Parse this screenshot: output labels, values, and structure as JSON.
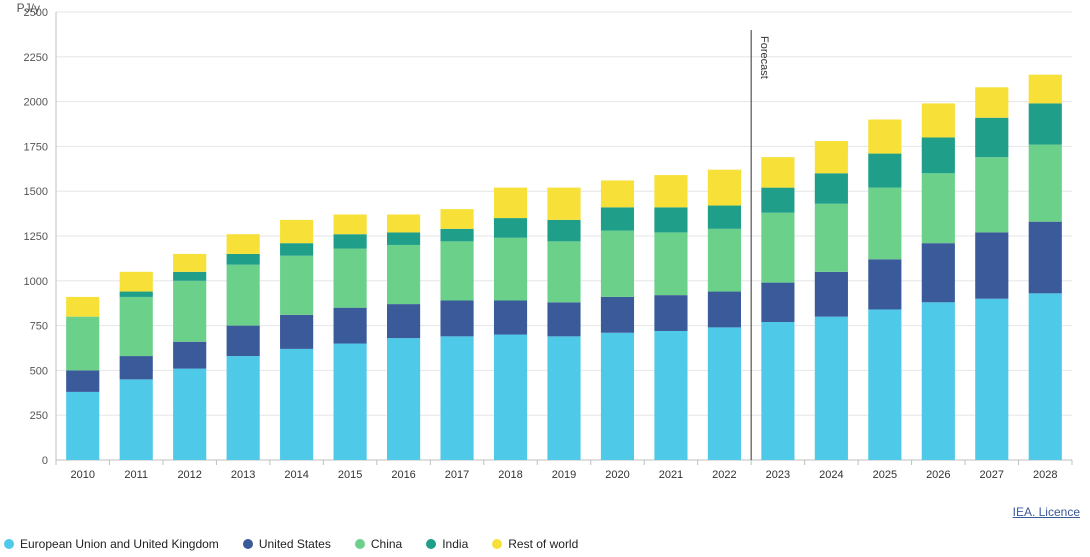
{
  "chart": {
    "type": "stacked-bar",
    "y_axis_title": "PJ/y",
    "y_axis_title_fontsize": 12,
    "ylim": [
      0,
      2500
    ],
    "ytick_step": 250,
    "label_fontsize": 11,
    "background_color": "#ffffff",
    "grid_color": "#e6e6e6",
    "axis_color": "#bfbfbf",
    "bar_width_ratio": 0.62,
    "forecast_label": "Forecast",
    "forecast_before_category": "2023",
    "forecast_line_color": "#333333",
    "series": [
      {
        "key": "eu_uk",
        "label": "European Union and United Kingdom",
        "color": "#4fc9e8"
      },
      {
        "key": "us",
        "label": "United States",
        "color": "#3a5a9a"
      },
      {
        "key": "china",
        "label": "China",
        "color": "#6bd08a"
      },
      {
        "key": "india",
        "label": "India",
        "color": "#1f9e8a"
      },
      {
        "key": "row",
        "label": "Rest of world",
        "color": "#f7e037"
      }
    ],
    "categories": [
      "2010",
      "2011",
      "2012",
      "2013",
      "2014",
      "2015",
      "2016",
      "2017",
      "2018",
      "2019",
      "2020",
      "2021",
      "2022",
      "2023",
      "2024",
      "2025",
      "2026",
      "2027",
      "2028"
    ],
    "data": {
      "eu_uk": [
        380,
        450,
        510,
        580,
        620,
        650,
        680,
        690,
        700,
        690,
        710,
        720,
        740,
        770,
        800,
        840,
        880,
        900,
        930
      ],
      "us": [
        120,
        130,
        150,
        170,
        190,
        200,
        190,
        200,
        190,
        190,
        200,
        200,
        200,
        220,
        250,
        280,
        330,
        370,
        400
      ],
      "china": [
        300,
        330,
        340,
        340,
        330,
        330,
        330,
        330,
        350,
        340,
        370,
        350,
        350,
        390,
        380,
        400,
        390,
        420,
        430
      ],
      "india": [
        0,
        30,
        50,
        60,
        70,
        80,
        70,
        70,
        110,
        120,
        130,
        140,
        130,
        140,
        170,
        190,
        200,
        220,
        230
      ],
      "row": [
        110,
        110,
        100,
        110,
        130,
        110,
        100,
        110,
        170,
        180,
        150,
        180,
        200,
        170,
        180,
        190,
        190,
        170,
        160
      ]
    }
  },
  "attribution": {
    "text": "IEA. Licence"
  }
}
